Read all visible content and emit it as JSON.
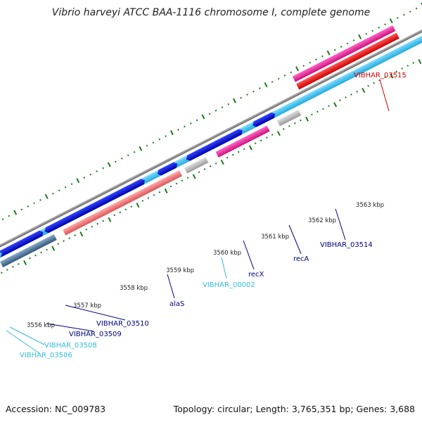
{
  "title": "Vibrio harveyi ATCC BAA-1116 chromosome I, complete genome",
  "footer": {
    "accession": "Accession: NC_009783",
    "summary": "Topology: circular; Length: 3,765,351 bp; Genes: 3,688"
  },
  "ticks": [
    {
      "label": "3556 kbp"
    },
    {
      "label": "3557 kbp"
    },
    {
      "label": "3558 kbp"
    },
    {
      "label": "3559 kbp"
    },
    {
      "label": "3560 kbp"
    },
    {
      "label": "3561 kbp"
    },
    {
      "label": "3562 kbp"
    },
    {
      "label": "3563 kbp"
    }
  ],
  "genes": [
    {
      "label": "VIBHAR_03515",
      "color": "#cc0000"
    },
    {
      "label": "VIBHAR_03514",
      "color": "#000080"
    },
    {
      "label": "recA",
      "color": "#000080"
    },
    {
      "label": "recX",
      "color": "#000080"
    },
    {
      "label": "VIBHAR_00002",
      "color": "#33bbdd"
    },
    {
      "label": "alaS",
      "color": "#000080"
    },
    {
      "label": "VIBHAR_03510",
      "color": "#000080"
    },
    {
      "label": "VIBHAR_03509",
      "color": "#000080"
    },
    {
      "label": "VIBHAR_03508",
      "color": "#33bbdd"
    },
    {
      "label": "VIBHAR_03506",
      "color": "#33bbdd"
    }
  ],
  "colors": {
    "backbone": "#888888",
    "cds_light": "#44c8f0",
    "cds_dark": "#0000dd",
    "pink": "#ee2299",
    "red": "#ee0000",
    "salmon": "#ee7777",
    "gray": "#bbbbbb",
    "steel": "#4477aa",
    "green": "#22cc22",
    "tick": "#1a7a1a"
  }
}
